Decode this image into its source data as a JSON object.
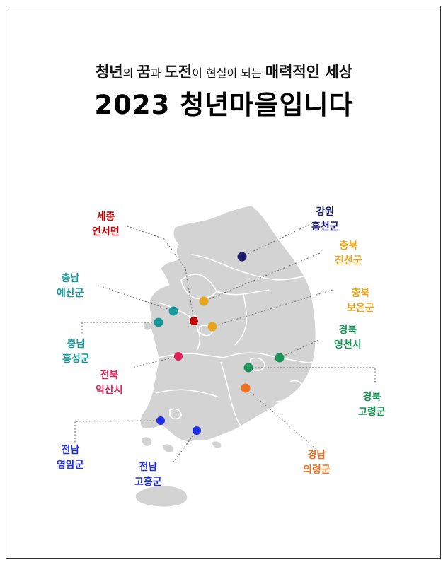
{
  "subtitle": {
    "p1": "청년",
    "p2": "의 ",
    "p3": "꿈",
    "p4": "과 ",
    "p5": "도전",
    "p6": "이 현실이 되는 ",
    "p7": "매력적인 세상"
  },
  "title": "2023 청년마을입니다",
  "colors": {
    "gangwon": "#1a1a6e",
    "chungbuk": "#eaa51e",
    "sejong": "#c00000",
    "chungnam": "#1a9b9b",
    "gyeongbuk": "#1a9457",
    "jeonbuk": "#e0205a",
    "gyeongnam": "#f07020",
    "jeonnam": "#1e2ee6",
    "map_fill": "#d3d3d3",
    "map_border": "#ffffff"
  },
  "villages": [
    {
      "key": "gangwon",
      "region": "강원",
      "county": "홍천군"
    },
    {
      "key": "chungbuk1",
      "region": "충북",
      "county": "진천군"
    },
    {
      "key": "chungbuk2",
      "region": "충북",
      "county": "보은군"
    },
    {
      "key": "sejong",
      "region": "세종",
      "county": "연서면"
    },
    {
      "key": "chungnam1",
      "region": "충남",
      "county": "예산군"
    },
    {
      "key": "chungnam2",
      "region": "충남",
      "county": "홍성군"
    },
    {
      "key": "gyeongbuk1",
      "region": "경북",
      "county": "영천시"
    },
    {
      "key": "gyeongbuk2",
      "region": "경북",
      "county": "고령군"
    },
    {
      "key": "jeonbuk",
      "region": "전북",
      "county": "익산시"
    },
    {
      "key": "gyeongnam",
      "region": "경남",
      "county": "의령군"
    },
    {
      "key": "jeonnam1",
      "region": "전남",
      "county": "영암군"
    },
    {
      "key": "jeonnam2",
      "region": "전남",
      "county": "고흥군"
    }
  ]
}
